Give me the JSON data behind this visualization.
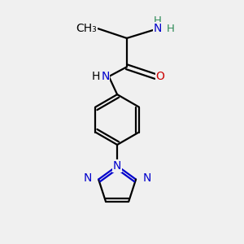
{
  "bg_color": "#f0f0f0",
  "bond_color": "#000000",
  "N_color": "#0000cc",
  "O_color": "#cc0000",
  "NH_color": "#2e8b57",
  "line_width": 1.6,
  "font_size": 10,
  "fig_size": [
    3.0,
    3.0
  ],
  "dpi": 100,
  "xlim": [
    0,
    10
  ],
  "ylim": [
    0,
    10
  ]
}
